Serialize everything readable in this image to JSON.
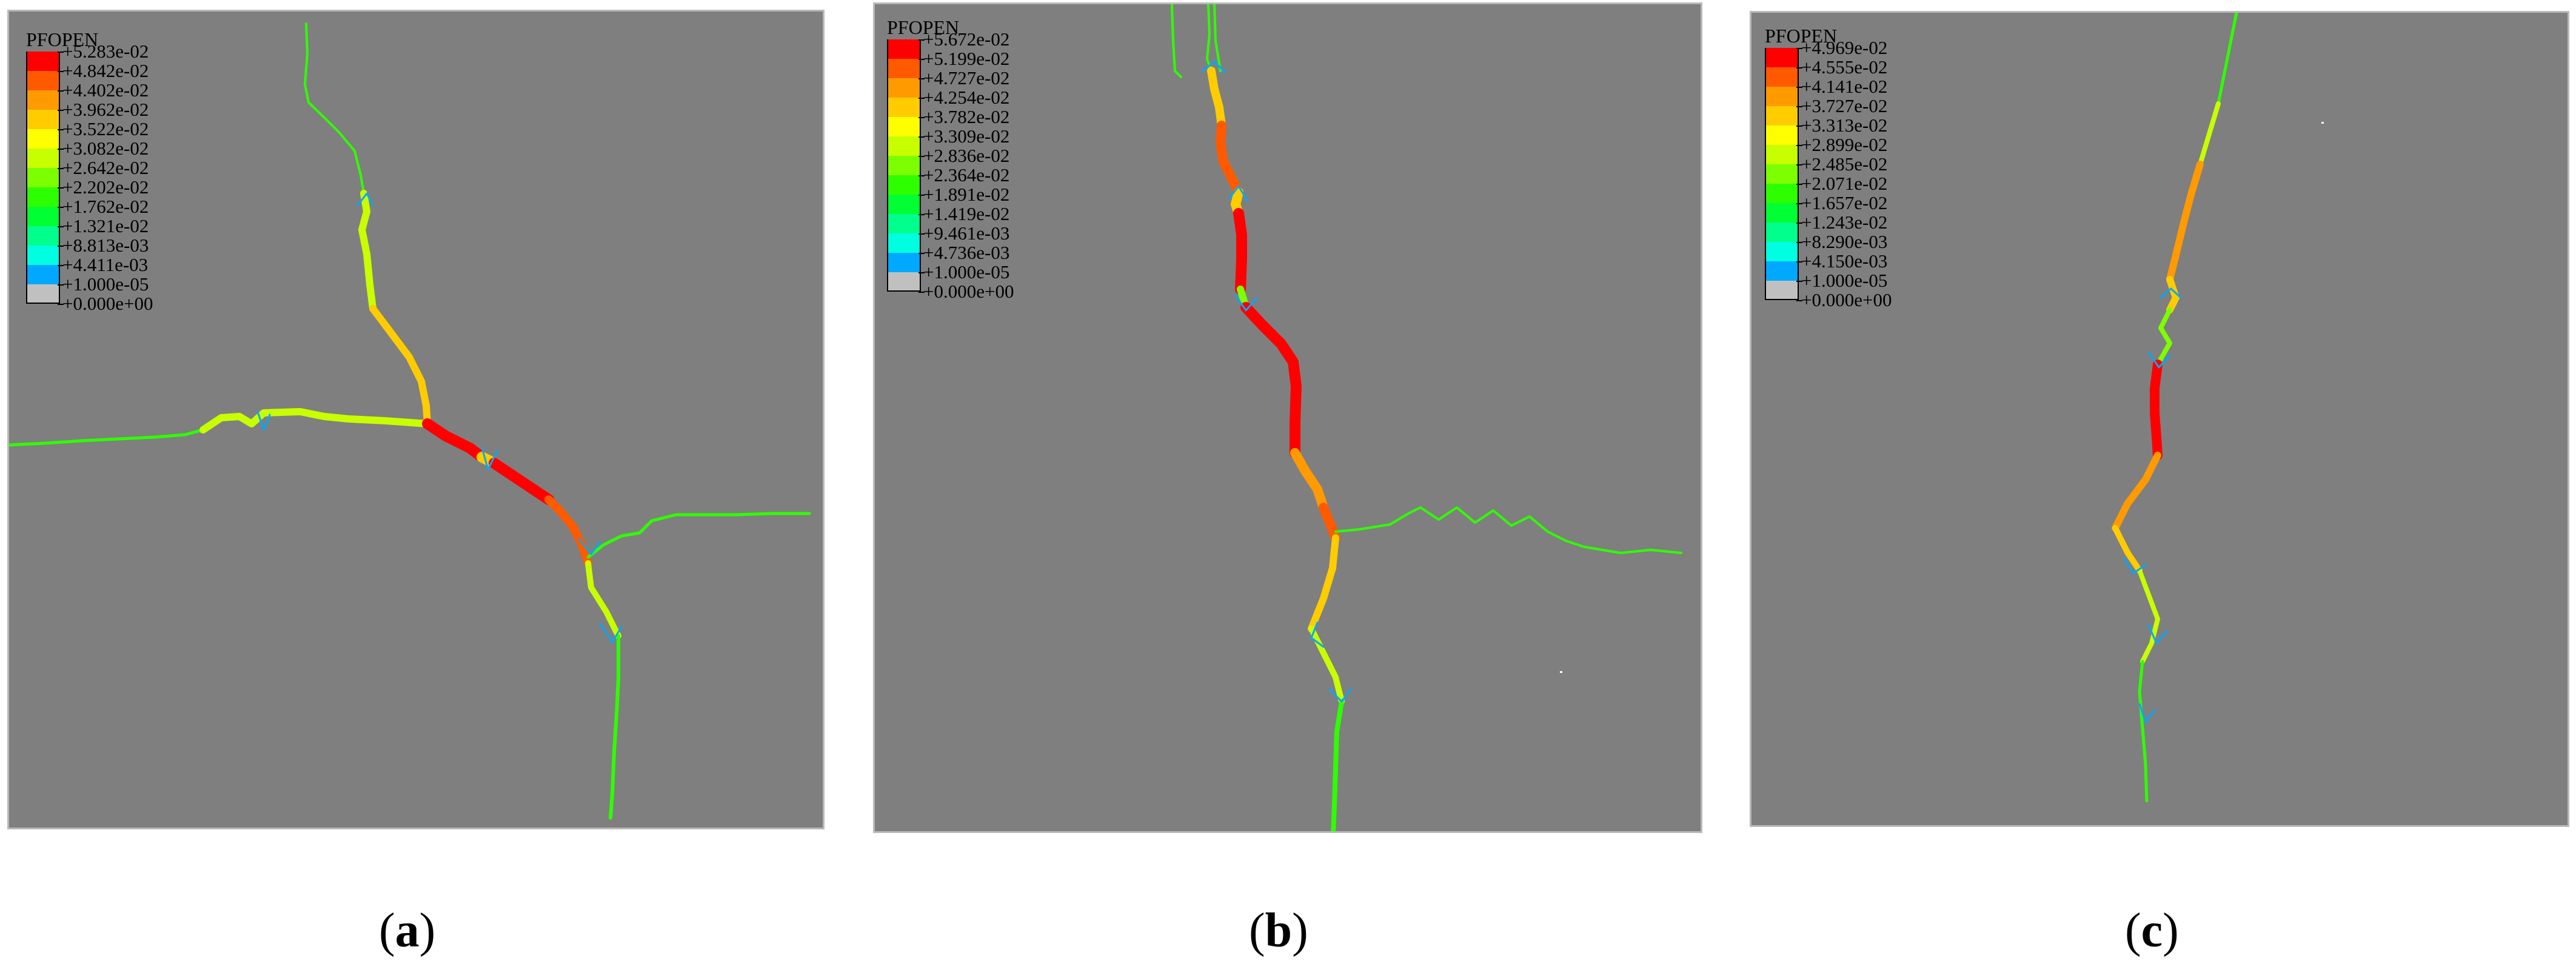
{
  "panels": [
    {
      "id": "a",
      "legend_title": "PFOPEN",
      "legend_values": [
        "+5.283e-02",
        "+4.842e-02",
        "+4.402e-02",
        "+3.962e-02",
        "+3.522e-02",
        "+3.082e-02",
        "+2.642e-02",
        "+2.202e-02",
        "+1.762e-02",
        "+1.321e-02",
        "+8.813e-03",
        "+4.411e-03",
        "+1.000e-05",
        "+0.000e+00"
      ],
      "caption_open": "(",
      "caption_letter": "a",
      "caption_close": ")"
    },
    {
      "id": "b",
      "legend_title": "PFOPEN",
      "legend_values": [
        "+5.672e-02",
        "+5.199e-02",
        "+4.727e-02",
        "+4.254e-02",
        "+3.782e-02",
        "+3.309e-02",
        "+2.836e-02",
        "+2.364e-02",
        "+1.891e-02",
        "+1.419e-02",
        "+9.461e-03",
        "+4.736e-03",
        "+1.000e-05",
        "+0.000e+00"
      ],
      "caption_open": "(",
      "caption_letter": "b",
      "caption_close": ")"
    },
    {
      "id": "c",
      "legend_title": "PFOPEN",
      "legend_values": [
        "+4.969e-02",
        "+4.555e-02",
        "+4.141e-02",
        "+3.727e-02",
        "+3.313e-02",
        "+2.899e-02",
        "+2.485e-02",
        "+2.071e-02",
        "+1.657e-02",
        "+1.243e-02",
        "+8.290e-03",
        "+4.150e-03",
        "+1.000e-05",
        "+0.000e+00"
      ],
      "caption_open": "(",
      "caption_letter": "c",
      "caption_close": ")"
    }
  ],
  "colors": {
    "background": "#7f7f7f",
    "scale": [
      "#ff0000",
      "#ff5a00",
      "#ff9a00",
      "#ffcc00",
      "#ffff00",
      "#c8ff00",
      "#7cff00",
      "#2eff00",
      "#00ff33",
      "#00ff8c",
      "#00ffe0",
      "#00a8ff",
      "#c0c0c0"
    ]
  }
}
